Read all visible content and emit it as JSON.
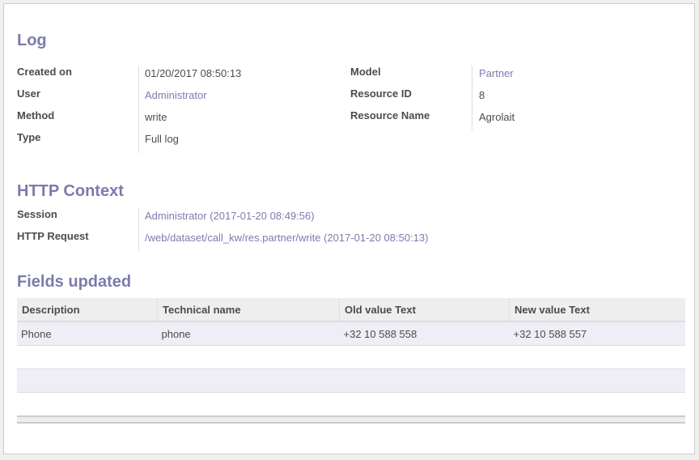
{
  "log": {
    "title": "Log",
    "left": [
      {
        "label": "Created on",
        "value": "01/20/2017 08:50:13",
        "link": false
      },
      {
        "label": "User",
        "value": "Administrator",
        "link": true
      },
      {
        "label": "Method",
        "value": "write",
        "link": false
      },
      {
        "label": "Type",
        "value": "Full log",
        "link": false
      }
    ],
    "right": [
      {
        "label": "Model",
        "value": "Partner",
        "link": true
      },
      {
        "label": "Resource ID",
        "value": "8",
        "link": false
      },
      {
        "label": "Resource Name",
        "value": "Agrolait",
        "link": false
      }
    ]
  },
  "http": {
    "title": "HTTP Context",
    "rows": [
      {
        "label": "Session",
        "value": "Administrator (2017-01-20 08:49:56)"
      },
      {
        "label": "HTTP Request",
        "value": "/web/dataset/call_kw/res.partner/write (2017-01-20 08:50:13)"
      }
    ]
  },
  "fields": {
    "title": "Fields updated",
    "columns": [
      "Description",
      "Technical name",
      "Old value Text",
      "New value Text"
    ],
    "rows": [
      [
        "Phone",
        "phone",
        "+32 10 588 558",
        "+32 10 588 557"
      ]
    ]
  },
  "colors": {
    "accent": "#7c7bad",
    "row_alt": "#eeeef6",
    "header_bg": "#eeeeee"
  }
}
